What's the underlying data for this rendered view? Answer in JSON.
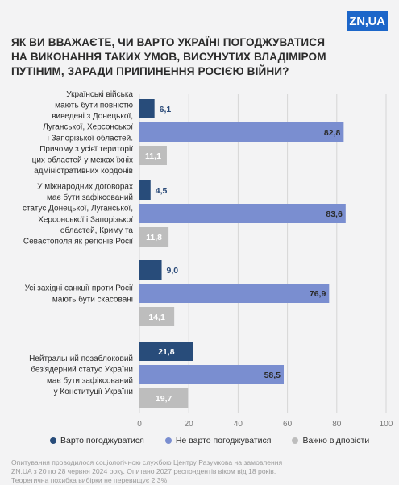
{
  "logo": "ZN,UA",
  "title_lines": [
    "ЯК ВИ ВВАЖАЄТЕ, ЧИ ВАРТО УКРАЇНІ ПОГОДЖУВАТИСЯ",
    "НА ВИКОНАННЯ ТАКИХ УМОВ, ВИСУНУТИХ ВЛАДІМІРОМ",
    "ПУТІНИМ, ЗАРАДИ ПРИПИНЕННЯ РОСІЄЮ ВІЙНИ?"
  ],
  "colors": {
    "agree": "#284c7a",
    "disagree": "#7a8ed0",
    "hard": "#bdbdbd",
    "agree_text": "#2a4a78",
    "grid": "#d6d6d6"
  },
  "chart_data": {
    "type": "bar",
    "orientation": "horizontal",
    "categories": [
      "Українські війська мають бути повністю виведені з Донецької, Луганської, Херсонської і Запорізької областей. Причому з усієї території цих областей у межах їхніх адміністративних кордонів",
      "У міжнародних договорах має бути зафіксований статус Донецької, Луганської, Херсонської і Запорізької областей, Криму та Севастополя як регіонів Росії",
      "Усі західні санкції проти Росії мають бути скасовані",
      "Нейтральний позаблоковий без'ядерний статус України має бути зафіксований у Конституції України"
    ],
    "category_lines": [
      [
        "Українські війська",
        "мають бути повністю",
        "виведені з Донецької,",
        "Луганської, Херсонської",
        "і Запорізької областей.",
        "Причому з усієї території",
        "цих областей у межах їхніх",
        "адміністративних кордонів"
      ],
      [
        "У міжнародних договорах",
        "має бути зафіксований",
        "статус Донецької, Луганської,",
        "Херсонської і Запорізької",
        "областей, Криму та",
        "Севастополя як регіонів Росії"
      ],
      [
        "Усі західні санкції проти Росії",
        "мають бути скасовані"
      ],
      [
        "Нейтральний позаблоковий",
        "без'ядерний статус України",
        "має бути зафіксований",
        "у Конституції України"
      ]
    ],
    "series": [
      {
        "name": "Варто погоджуватися",
        "values": [
          6.1,
          4.5,
          9.0,
          21.8
        ]
      },
      {
        "name": "Не варто погоджуватися",
        "values": [
          82.8,
          83.6,
          76.9,
          58.5
        ]
      },
      {
        "name": "Важко відповісти",
        "values": [
          11.1,
          11.8,
          14.1,
          19.7
        ]
      }
    ],
    "value_labels": [
      [
        "6,1",
        "82,8",
        "11,1"
      ],
      [
        "4,5",
        "83,6",
        "11,8"
      ],
      [
        "9,0",
        "76,9",
        "14,1"
      ],
      [
        "21,8",
        "58,5",
        "19,7"
      ]
    ],
    "xlim": [
      0,
      100
    ],
    "xticks": [
      0,
      20,
      40,
      60,
      80,
      100
    ],
    "grid": true,
    "legend_position": "bottom"
  },
  "footnote_lines": [
    "Опитування проводилося  соціологічною службою Центру Разумкова на замовлення",
    "ZN.UA з 20 по 28 червня 2024 року. Опитано 2027 респондентів віком від 18 років.",
    "Теоретична похибка вибірки не перевищує 2,3%."
  ]
}
